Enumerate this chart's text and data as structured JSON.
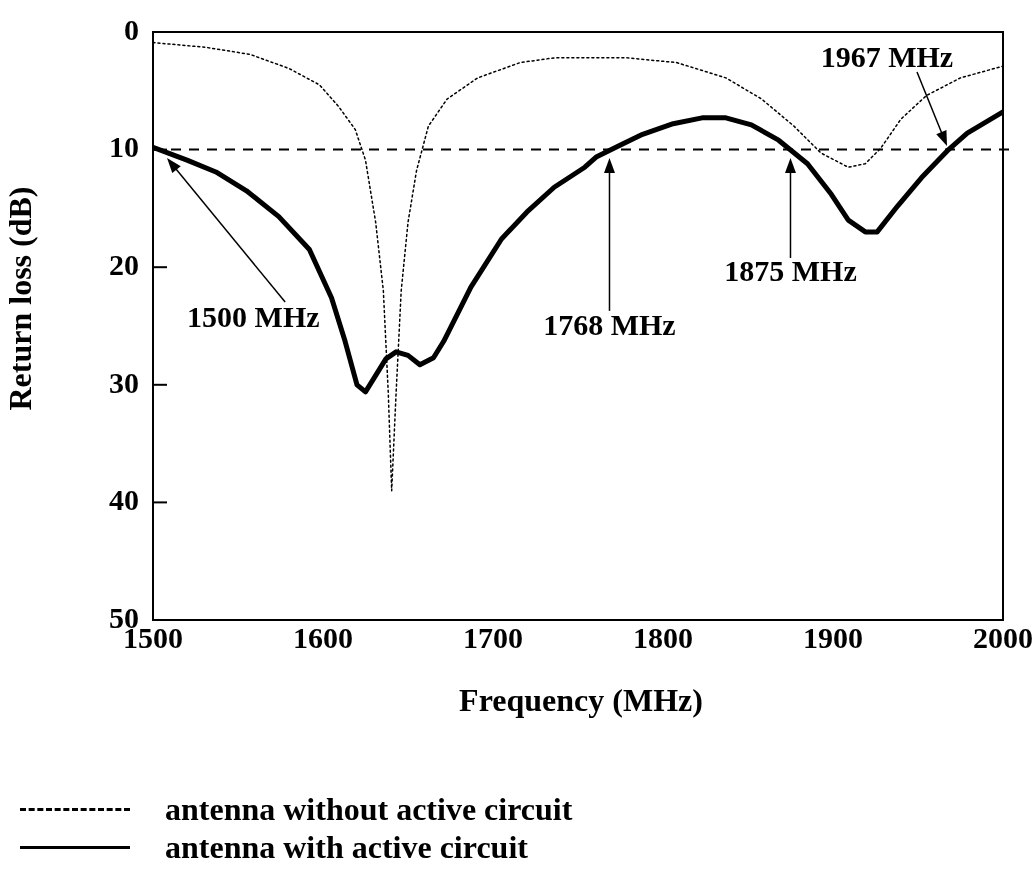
{
  "chart_data": {
    "type": "line",
    "xlabel": "Frequency (MHz)",
    "ylabel": "Return loss (dB)",
    "xlim": [
      1500,
      2000
    ],
    "xticks": [
      1500,
      1600,
      1700,
      1800,
      1900,
      2000
    ],
    "ylim": [
      50,
      0
    ],
    "yticks": [
      0,
      10,
      20,
      30,
      40,
      50
    ],
    "grid": false,
    "legend": "bottom",
    "marker": "none",
    "series": [
      {
        "name": "antenna without active circuit",
        "color": "#000000",
        "line_style": "dotted",
        "x": [
          1500,
          1531,
          1557,
          1580,
          1598,
          1609,
          1619,
          1625,
          1631,
          1635.5,
          1638.4,
          1640.4,
          1643,
          1646,
          1650,
          1655,
          1662,
          1673,
          1691,
          1716,
          1736,
          1754,
          1779,
          1808,
          1837,
          1858,
          1877,
          1893,
          1909,
          1919,
          1928,
          1940,
          1955,
          1975,
          2000
        ],
        "values": [
          0.9,
          1.3,
          1.9,
          3.1,
          4.5,
          6.3,
          8.3,
          10.9,
          16.2,
          22,
          30.7,
          39,
          30.7,
          22,
          16.2,
          11.8,
          8.0,
          5.7,
          3.9,
          2.6,
          2.2,
          2.2,
          2.2,
          2.6,
          3.9,
          5.7,
          8.0,
          10.3,
          11.5,
          11.2,
          9.9,
          7.4,
          5.4,
          3.9,
          2.9
        ]
      },
      {
        "name": "antenna with active circuit",
        "color": "#000000",
        "line_style": "solid",
        "x": [
          1500,
          1520,
          1537,
          1555,
          1574,
          1592,
          1605,
          1613,
          1620,
          1625,
          1637,
          1643,
          1650,
          1657,
          1665,
          1671,
          1687,
          1705,
          1720,
          1736,
          1754,
          1761,
          1775,
          1788,
          1806,
          1823,
          1837,
          1852,
          1868,
          1885,
          1899,
          1909,
          1919,
          1926,
          1938,
          1952,
          1968,
          1979,
          2000
        ],
        "values": [
          9.8,
          10.9,
          11.9,
          13.5,
          15.7,
          18.5,
          22.6,
          26.3,
          30,
          30.6,
          27.8,
          27.2,
          27.5,
          28.3,
          27.7,
          26.3,
          21.7,
          17.6,
          15.3,
          13.2,
          11.5,
          10.6,
          9.6,
          8.7,
          7.8,
          7.3,
          7.3,
          7.9,
          9.2,
          11.2,
          13.8,
          16.0,
          17.0,
          17.0,
          14.8,
          12.4,
          10.0,
          8.6,
          6.8
        ]
      }
    ],
    "ref_lines": [
      {
        "axis": "y",
        "value": 10,
        "color": "#000000",
        "line_style": "dashed"
      }
    ],
    "annotations": [
      "1500 MHz",
      "1768 MHz",
      "1875 MHz",
      {
        "text": "1967 MHz",
        "x": 1967,
        "y": 10
      }
    ]
  }
}
